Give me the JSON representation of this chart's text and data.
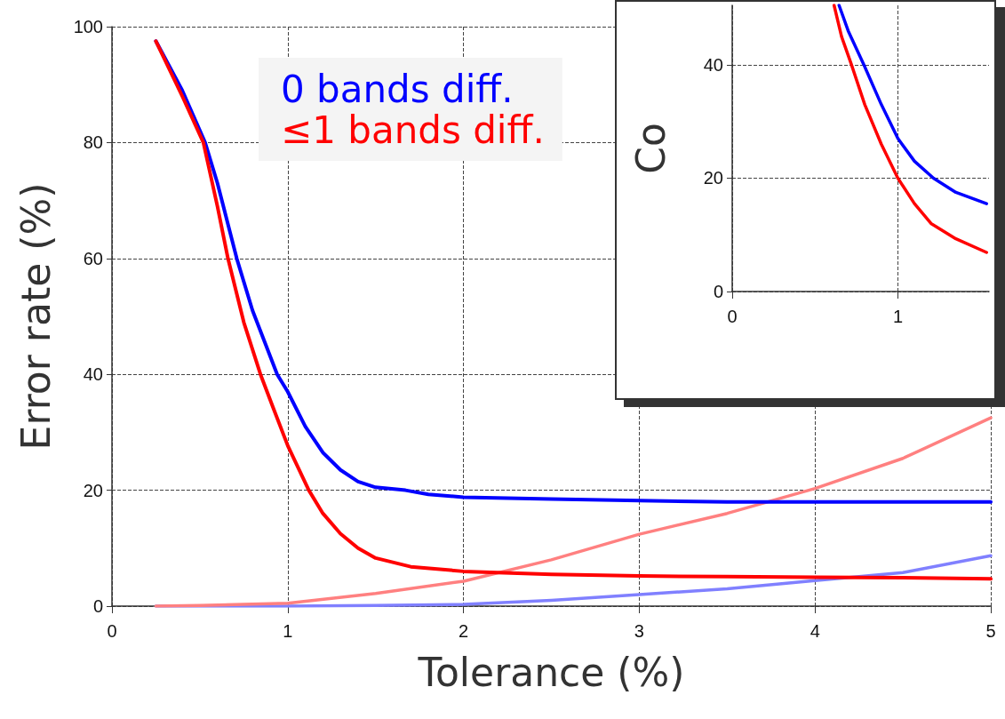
{
  "chart_data": [
    {
      "type": "line",
      "xlabel": "Tolerance (%)",
      "ylabel": "Error rate (%)",
      "xlim": [
        0,
        5
      ],
      "ylim": [
        0,
        100
      ],
      "xticks": [
        0,
        1,
        2,
        3,
        4,
        5
      ],
      "yticks": [
        0,
        20,
        40,
        60,
        80,
        100
      ],
      "grid": true,
      "legend": "top left",
      "marker": "none",
      "line_style": "solid",
      "series": [
        {
          "name": "0 bands diff.",
          "color": "#0000ff",
          "x": [
            0.25,
            0.4,
            0.53,
            0.6,
            0.71,
            0.8,
            0.94,
            1.0,
            1.1,
            1.2,
            1.3,
            1.4,
            1.5,
            1.67,
            1.8,
            2.0,
            2.5,
            3.0,
            3.5,
            4.0,
            4.5,
            5.0
          ],
          "values": [
            97.5,
            89,
            80,
            73,
            60,
            51,
            40,
            37,
            31,
            26.5,
            23.5,
            21.5,
            20.5,
            20,
            19.3,
            18.8,
            18.5,
            18.2,
            18,
            18,
            18,
            18
          ]
        },
        {
          "name": "≤1 bands diff.",
          "color": "#ff0000",
          "x": [
            0.25,
            0.4,
            0.52,
            0.6,
            0.66,
            0.75,
            0.845,
            0.92,
            1.0,
            1.12,
            1.2,
            1.3,
            1.4,
            1.5,
            1.7,
            2.0,
            2.5,
            3.0,
            3.5,
            4.0,
            4.5,
            5.0
          ],
          "values": [
            97.5,
            88,
            80,
            69,
            60,
            49,
            40,
            34,
            27.7,
            20,
            16,
            12.5,
            10,
            8.3,
            6.8,
            6,
            5.5,
            5.2,
            5.1,
            5,
            4.9,
            4.7
          ]
        },
        {
          "color": "#8080ff",
          "x": [
            0.25,
            1.0,
            1.5,
            2.0,
            2.5,
            3.0,
            3.5,
            4.0,
            4.5,
            5.0
          ],
          "values": [
            0,
            0,
            0.1,
            0.3,
            1,
            2,
            3,
            4.4,
            5.8,
            8.7
          ]
        },
        {
          "color": "#ff8080",
          "x": [
            0.25,
            0.5,
            1.0,
            1.5,
            2.0,
            2.5,
            3.0,
            3.5,
            4.0,
            4.5,
            5.0
          ],
          "values": [
            0,
            0.1,
            0.5,
            2.2,
            4.3,
            8,
            12.4,
            16,
            20.3,
            25.5,
            32.5
          ]
        }
      ]
    },
    {
      "type": "line",
      "ylabel": "Co",
      "xlim": [
        0,
        1.55
      ],
      "ylim": [
        0,
        50.5
      ],
      "xticks": [
        0,
        1
      ],
      "yticks": [
        0,
        20,
        40
      ],
      "grid": true,
      "marker": "none",
      "line_style": "solid",
      "series": [
        {
          "color": "#0000ff",
          "x": [
            0.645,
            0.7,
            0.795,
            0.9,
            1.0,
            1.1,
            1.215,
            1.35,
            1.535
          ],
          "values": [
            50.5,
            46,
            40,
            33,
            27,
            23,
            20,
            17.5,
            15.5
          ]
        },
        {
          "color": "#ff0000",
          "x": [
            0.615,
            0.66,
            0.72,
            0.8,
            0.9,
            1.0,
            1.1,
            1.2,
            1.35,
            1.535
          ],
          "values": [
            50.5,
            45,
            40,
            33,
            26,
            20,
            15.5,
            12,
            9.3,
            6.9
          ]
        }
      ]
    }
  ]
}
